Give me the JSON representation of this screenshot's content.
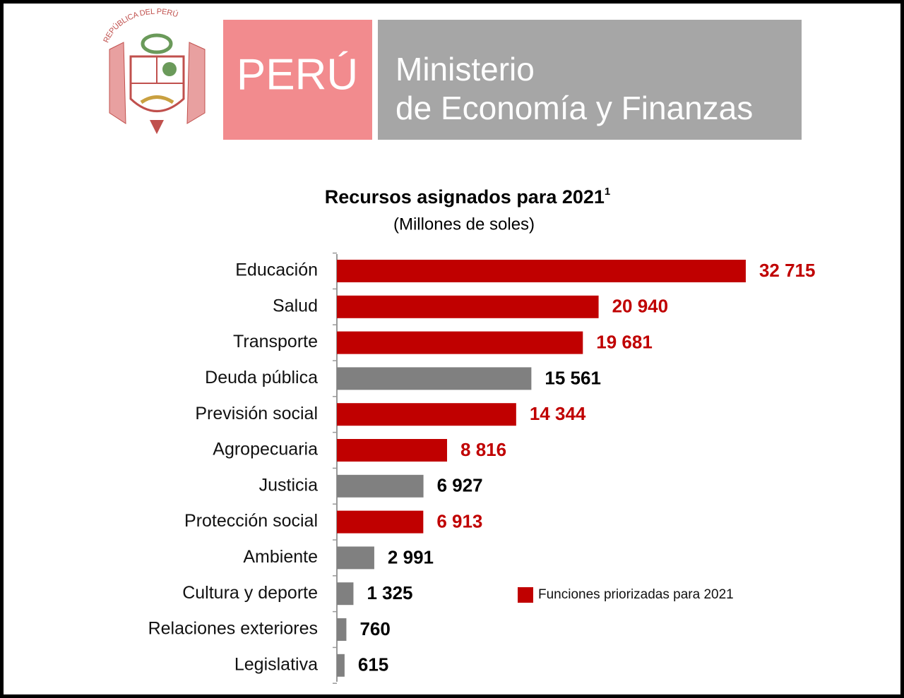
{
  "header": {
    "emblem_text": "REPÚBLICA DEL PERÚ",
    "country": "PERÚ",
    "ministry_line1": "Ministerio",
    "ministry_line2": "de Economía y Finanzas"
  },
  "chart_data": {
    "type": "barh",
    "title": "Recursos asignados para 2021",
    "title_note": "1",
    "subtitle": "(Millones de soles)",
    "categories": [
      "Educación",
      "Salud",
      "Transporte",
      "Deuda pública",
      "Previsión social",
      "Agropecuaria",
      "Justicia",
      "Protección social",
      "Ambiente",
      "Cultura y deporte",
      "Relaciones exteriores",
      "Legislativa"
    ],
    "values": [
      32715,
      20940,
      19681,
      15561,
      14344,
      8816,
      6927,
      6913,
      2991,
      1325,
      760,
      615
    ],
    "value_labels": [
      "32 715",
      "20 940",
      "19 681",
      "15 561",
      "14 344",
      "8 816",
      "6 927",
      "6 913",
      "2 991",
      "1 325",
      "760",
      "615"
    ],
    "colors": [
      "#c00000",
      "#c00000",
      "#c00000",
      "#808080",
      "#c00000",
      "#c00000",
      "#808080",
      "#c00000",
      "#808080",
      "#808080",
      "#808080",
      "#808080"
    ],
    "label_colors": [
      "#c00000",
      "#c00000",
      "#c00000",
      "#000000",
      "#c00000",
      "#c00000",
      "#000000",
      "#c00000",
      "#000000",
      "#000000",
      "#000000",
      "#000000"
    ],
    "xlim": [
      0,
      33000
    ],
    "legend": {
      "label": "Funciones priorizadas para 2021",
      "color": "#c00000"
    }
  }
}
